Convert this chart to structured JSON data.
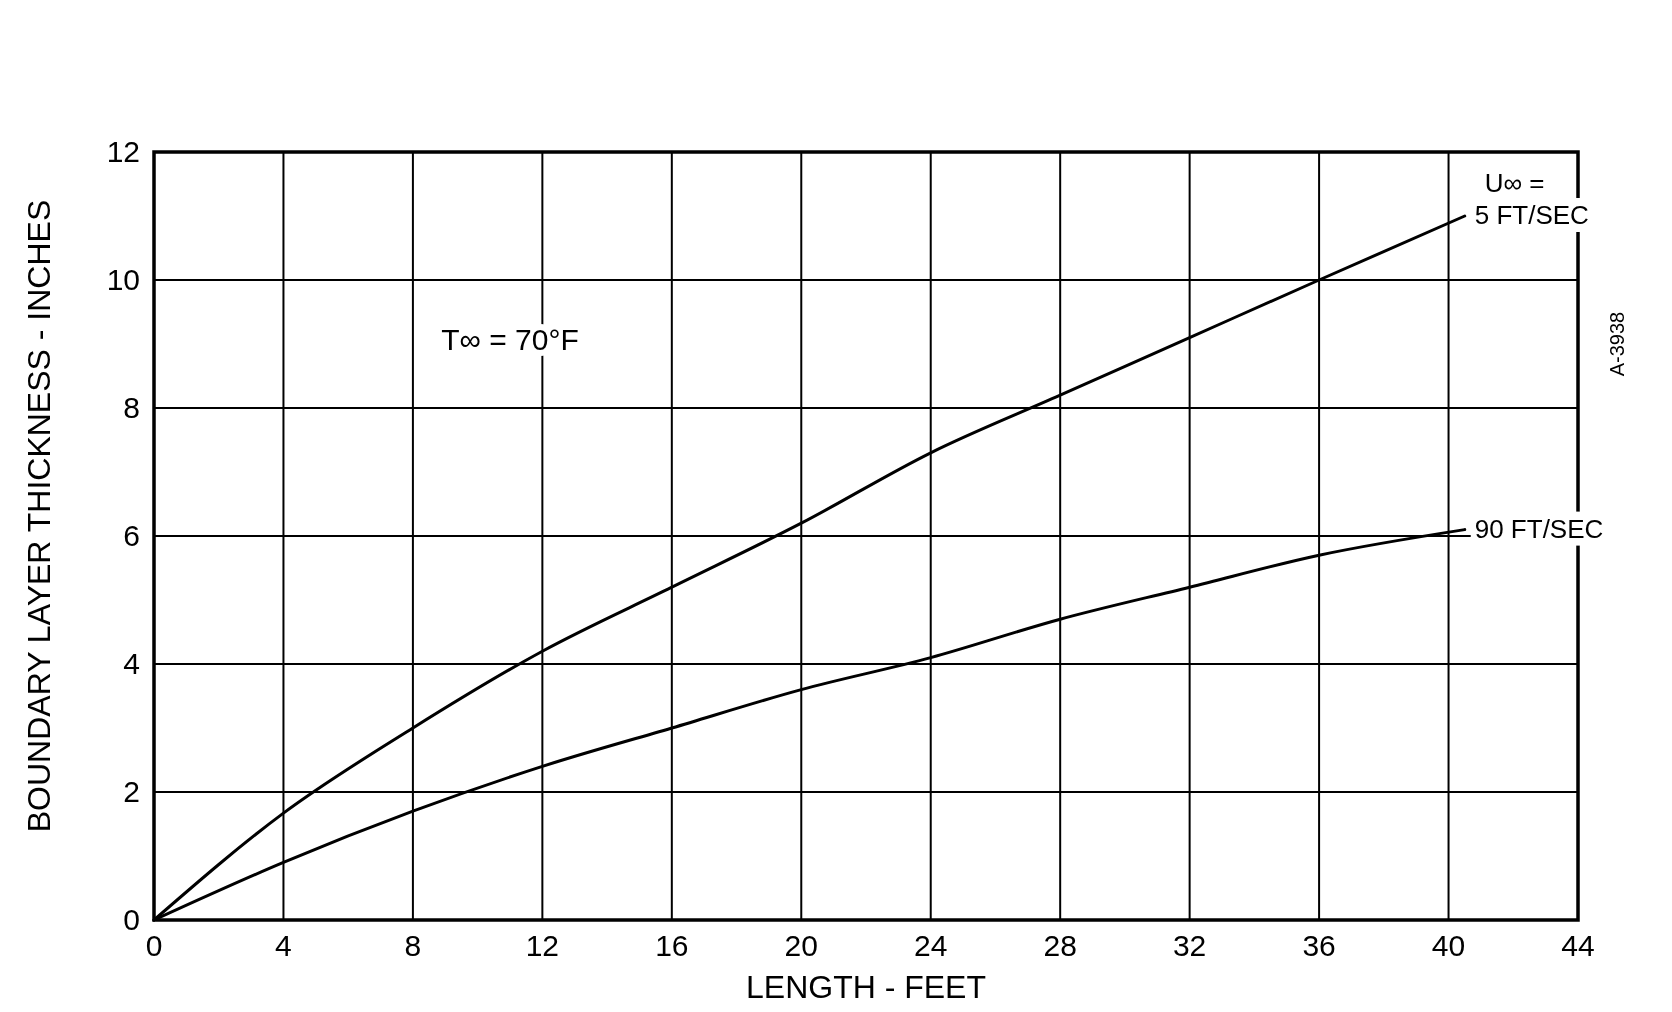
{
  "chart_data": {
    "type": "line",
    "xlabel": "LENGTH - FEET",
    "ylabel": "BOUNDARY LAYER THICKNESS - INCHES",
    "xlim": [
      0,
      44
    ],
    "xticks": [
      0,
      4,
      8,
      12,
      16,
      20,
      24,
      28,
      32,
      36,
      40,
      44
    ],
    "ylim": [
      0,
      12
    ],
    "yticks": [
      0,
      2,
      4,
      6,
      8,
      10,
      12
    ],
    "grid": true,
    "legend_title": "U∞ =",
    "annotations": [
      "T∞ = 70°F",
      "A-3938"
    ],
    "series": [
      {
        "name": "5 FT/SEC",
        "color": "#000000",
        "x": [
          0,
          4,
          8,
          12,
          16,
          20,
          24,
          28,
          32,
          36,
          40.5
        ],
        "values": [
          0,
          1.67,
          3.0,
          4.2,
          5.2,
          6.2,
          7.3,
          8.2,
          9.1,
          10.0,
          11.0
        ]
      },
      {
        "name": "90 FT/SEC",
        "color": "#000000",
        "x": [
          0,
          4,
          8,
          12,
          16,
          20,
          24,
          28,
          32,
          36,
          40.5
        ],
        "values": [
          0,
          0.9,
          1.7,
          2.4,
          3.0,
          3.6,
          4.1,
          4.7,
          5.2,
          5.7,
          6.1
        ]
      }
    ]
  }
}
